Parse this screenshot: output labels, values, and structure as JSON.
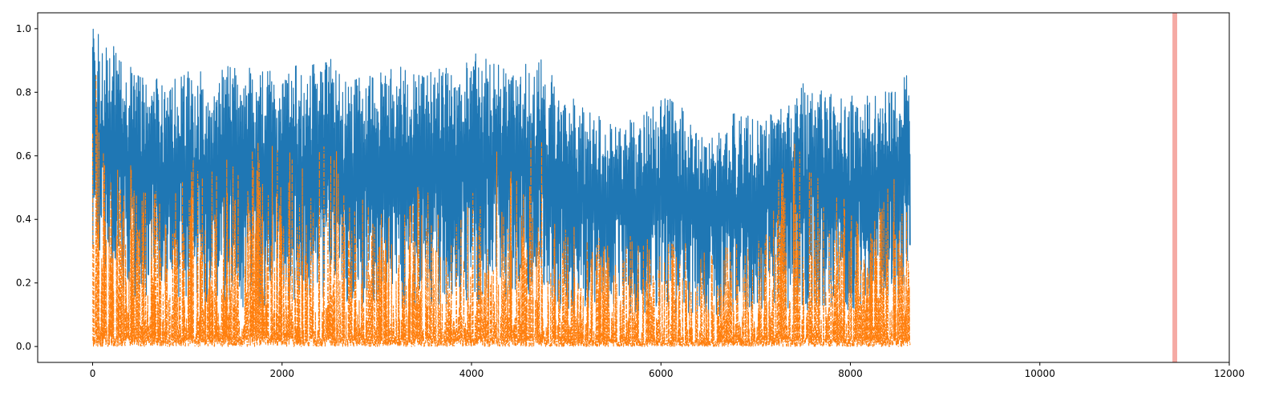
{
  "chart_data": {
    "type": "line",
    "title": "",
    "xlabel": "",
    "ylabel": "",
    "xlim": [
      -580,
      12000
    ],
    "ylim": [
      -0.05,
      1.05
    ],
    "x_ticks": [
      0,
      2000,
      4000,
      6000,
      8000,
      10000,
      12000
    ],
    "x_tick_labels": [
      "0",
      "2000",
      "4000",
      "6000",
      "8000",
      "10000",
      "12000"
    ],
    "y_ticks": [
      0.0,
      0.2,
      0.4,
      0.6,
      0.8,
      1.0
    ],
    "y_tick_labels": [
      "0.0",
      "0.2",
      "0.4",
      "0.6",
      "0.8",
      "1.0"
    ],
    "grid": false,
    "legend": false,
    "series": [
      {
        "color": "#1f77b4",
        "line_style": "solid",
        "n_points": 8633,
        "envelope": {
          "x": [
            0,
            250,
            500,
            750,
            1000,
            1250,
            1500,
            1750,
            2000,
            2250,
            2500,
            2750,
            3000,
            3250,
            3500,
            3750,
            4000,
            4250,
            4500,
            4750,
            5000,
            5250,
            5500,
            5750,
            6000,
            6250,
            6500,
            6750,
            7000,
            7250,
            7500,
            7750,
            8000,
            8250,
            8500,
            8633
          ],
          "upper": [
            1.0,
            0.94,
            0.86,
            0.85,
            0.87,
            0.87,
            0.89,
            0.88,
            0.86,
            0.92,
            0.91,
            0.85,
            0.86,
            0.88,
            0.86,
            0.88,
            0.93,
            0.89,
            0.9,
            0.91,
            0.8,
            0.74,
            0.7,
            0.72,
            0.79,
            0.76,
            0.64,
            0.74,
            0.72,
            0.76,
            0.83,
            0.8,
            0.79,
            0.79,
            0.83,
            0.89
          ],
          "lower": [
            0.3,
            0.19,
            0.14,
            0.16,
            0.14,
            0.13,
            0.12,
            0.12,
            0.13,
            0.15,
            0.14,
            0.12,
            0.12,
            0.12,
            0.12,
            0.12,
            0.13,
            0.14,
            0.14,
            0.13,
            0.1,
            0.1,
            0.11,
            0.1,
            0.1,
            0.11,
            0.09,
            0.1,
            0.11,
            0.12,
            0.11,
            0.11,
            0.11,
            0.12,
            0.14,
            0.22
          ]
        }
      },
      {
        "color": "#ff7f0e",
        "line_style": "dashdot",
        "n_points": 8633,
        "envelope": {
          "x": [
            0,
            250,
            500,
            750,
            1000,
            1250,
            1500,
            1750,
            2000,
            2250,
            2500,
            2750,
            3000,
            3250,
            3500,
            3750,
            4000,
            4250,
            4500,
            4750,
            5000,
            5250,
            5500,
            5750,
            6000,
            6250,
            6500,
            6750,
            7000,
            7250,
            7500,
            7750,
            8000,
            8250,
            8500,
            8633
          ],
          "upper": [
            1.0,
            0.6,
            0.64,
            0.42,
            0.58,
            0.62,
            0.6,
            0.7,
            0.62,
            0.6,
            0.67,
            0.52,
            0.42,
            0.52,
            0.5,
            0.5,
            0.56,
            0.65,
            0.66,
            0.68,
            0.4,
            0.38,
            0.32,
            0.36,
            0.38,
            0.34,
            0.3,
            0.34,
            0.38,
            0.6,
            0.68,
            0.5,
            0.46,
            0.42,
            0.6,
            0.45
          ],
          "lower": [
            0.0,
            0.0,
            0.0,
            0.0,
            0.0,
            0.0,
            0.0,
            0.0,
            0.0,
            0.0,
            0.0,
            0.0,
            0.0,
            0.0,
            0.0,
            0.0,
            0.0,
            0.0,
            0.0,
            0.0,
            0.0,
            0.0,
            0.0,
            0.0,
            0.0,
            0.0,
            0.0,
            0.0,
            0.0,
            0.0,
            0.0,
            0.0,
            0.0,
            0.0,
            0.0,
            0.0
          ]
        }
      }
    ],
    "highlight_spans": [
      {
        "x_start": 11400,
        "x_end": 11450,
        "color": "#f4a19a"
      }
    ]
  }
}
